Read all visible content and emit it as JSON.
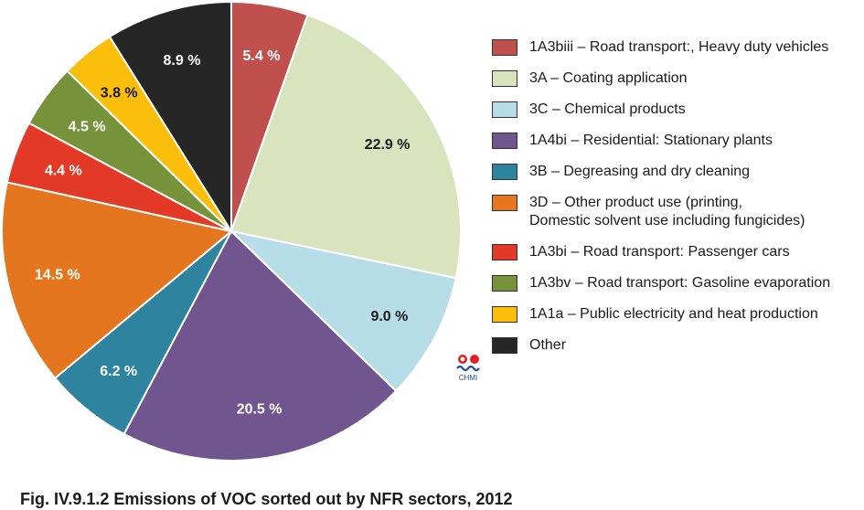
{
  "chart_data": {
    "type": "pie",
    "title": "",
    "slices": [
      {
        "label": "1A3biii – Road transport:, Heavy duty vehicles",
        "value": 5.4,
        "display": "5.4 %",
        "color": "#c0504d",
        "label_dark": false
      },
      {
        "label": "3A – Coating application",
        "value": 22.9,
        "display": "22.9 %",
        "color": "#d9e4bf",
        "label_dark": true
      },
      {
        "label": "3C – Chemical products",
        "value": 9.0,
        "display": "9.0 %",
        "color": "#b7dde8",
        "label_dark": true
      },
      {
        "label": "1A4bi  – Residential: Stationary plants",
        "value": 20.5,
        "display": "20.5 %",
        "color": "#70558f",
        "label_dark": false
      },
      {
        "label": "3B – Degreasing and dry cleaning",
        "value": 6.2,
        "display": "6.2 %",
        "color": "#2e849e",
        "label_dark": false
      },
      {
        "label": "3D – Other product use (printing,\nDomestic solvent use including fungicides)",
        "value": 14.5,
        "display": "14.5 %",
        "color": "#e4761f",
        "label_dark": false
      },
      {
        "label": "1A3bi – Road transport: Passenger cars",
        "value": 4.4,
        "display": "4.4 %",
        "color": "#e33a27",
        "label_dark": false
      },
      {
        "label": "1A3bv – Road transport: Gasoline evaporation",
        "value": 4.5,
        "display": "4.5 %",
        "color": "#76933c",
        "label_dark": false
      },
      {
        "label": "1A1a – Public electricity and heat production",
        "value": 3.8,
        "display": "3.8 %",
        "color": "#fbbf0b",
        "label_dark": true
      },
      {
        "label": "Other",
        "value": 8.9,
        "display": "8.9 %",
        "color": "#262626",
        "label_dark": false
      }
    ],
    "legend_position": "right"
  },
  "logo": {
    "text": "CHMI",
    "colors": {
      "dots": "#e01f26",
      "wave": "#1d4e9e"
    }
  },
  "caption": "Fig. IV.9.1.2  Emissions of VOC sorted out by NFR sectors, 2012"
}
